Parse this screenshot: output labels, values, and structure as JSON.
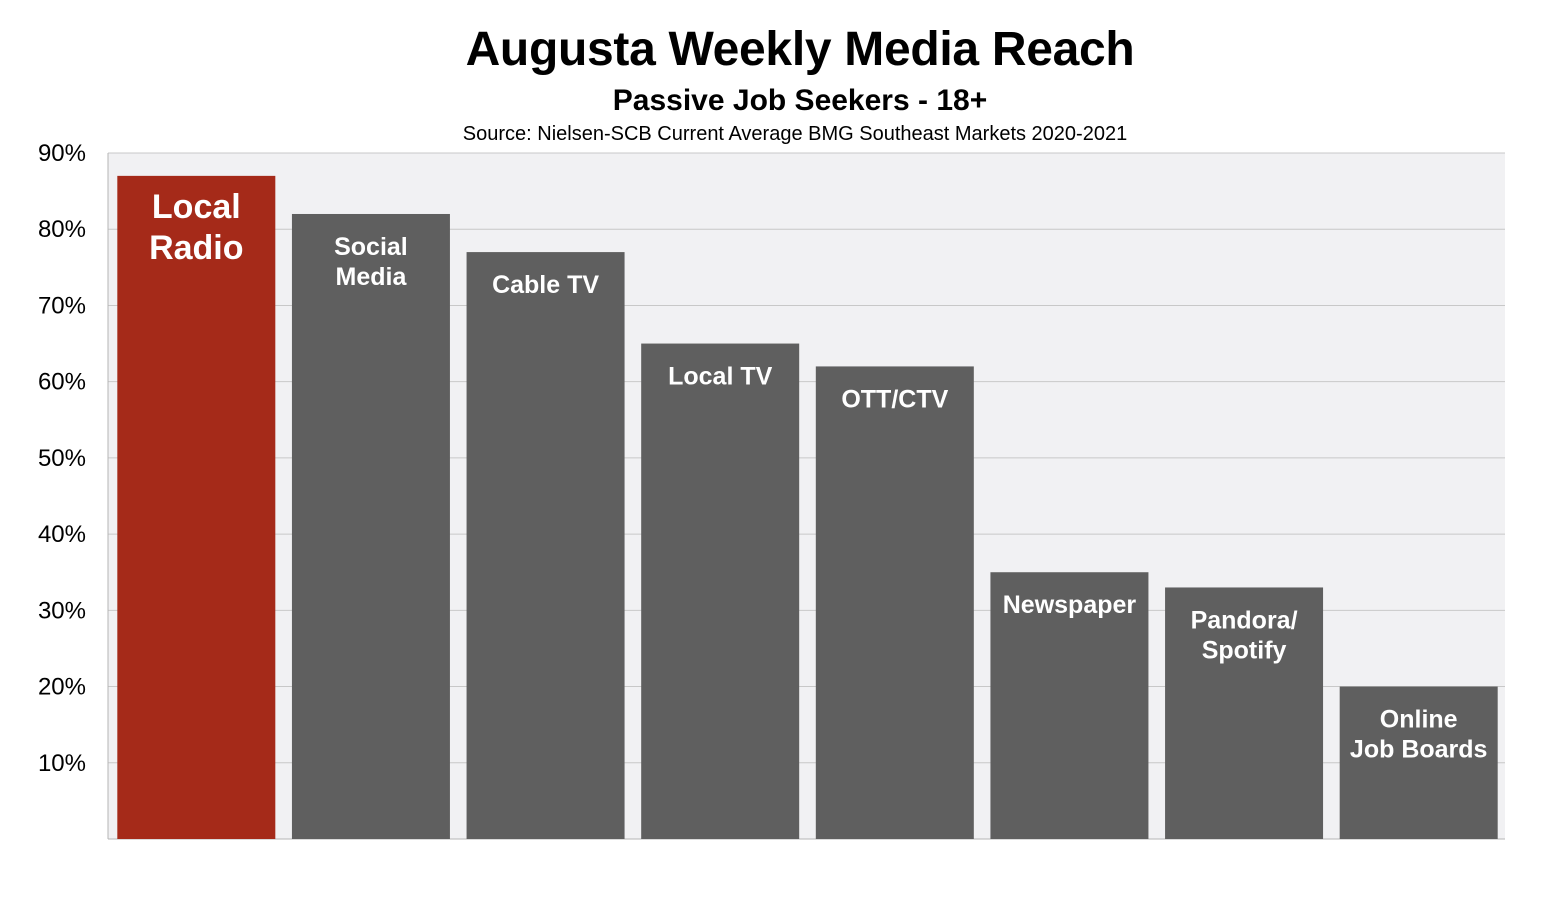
{
  "chart_data": {
    "type": "bar",
    "title": "Augusta Weekly Media Reach",
    "subtitle": "Passive Job Seekers - 18+",
    "source": "Source: Nielsen-SCB  Current Average BMG Southeast Markets 2020-2021",
    "categories": [
      [
        "Local",
        "Radio"
      ],
      [
        "Social",
        "Media"
      ],
      [
        "Cable TV"
      ],
      [
        "Local TV"
      ],
      [
        "OTT/CTV"
      ],
      [
        "Newspaper"
      ],
      [
        "Pandora/",
        "Spotify"
      ],
      [
        "Online",
        "Job Boards"
      ]
    ],
    "values": [
      87,
      82,
      77,
      65,
      62,
      35,
      33,
      20
    ],
    "y_ticks": [
      "10%",
      "20%",
      "30%",
      "40%",
      "50%",
      "60%",
      "70%",
      "80%",
      "90%"
    ],
    "y_tick_values": [
      10,
      20,
      30,
      40,
      50,
      60,
      70,
      80,
      90
    ],
    "ylim": [
      0,
      90
    ],
    "grid": true,
    "colors": {
      "highlight": "#a52a19",
      "bar": "#5f5f5f",
      "plot_bg": "#f1f1f3",
      "grid": "#c8c8c8",
      "label": "#ffffff"
    }
  }
}
